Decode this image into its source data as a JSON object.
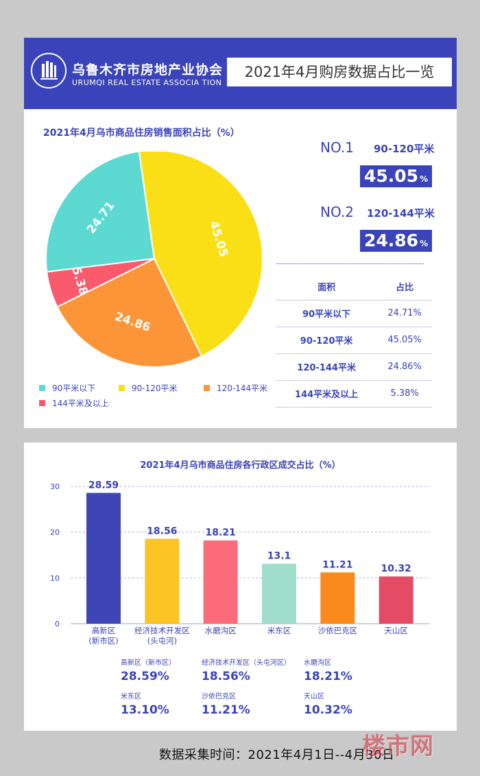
{
  "header": {
    "org_name": "乌鲁木齐市房地产业协会",
    "org_name_en": "URUMQI REAL ESTATE ASSOCIA TION",
    "title": "2021年4月购房数据占比一览"
  },
  "ranking": {
    "no1_label": "NO.1",
    "no1_category": "90-120平米",
    "no1_value": "45.05",
    "no2_label": "NO.2",
    "no2_category": "120-144平米",
    "no2_value": "24.86",
    "pct_sign": "%"
  },
  "area_table": {
    "headers": [
      "面积",
      "占比"
    ],
    "rows": [
      [
        "90平米以下",
        "24.71%"
      ],
      [
        "90-120平米",
        "45.05%"
      ],
      [
        "120-144平米",
        "24.86%"
      ],
      [
        "144平米及以上",
        "5.38%"
      ]
    ]
  },
  "district_stats": [
    {
      "label": "高新区（新市区）",
      "value": "28.59%"
    },
    {
      "label": "经济技术开发区（头屯河区）",
      "value": "18.56%"
    },
    {
      "label": "水磨沟区",
      "value": "18.21%"
    },
    {
      "label": "米东区",
      "value": "13.10%"
    },
    {
      "label": "沙依巴克区",
      "value": "11.21%"
    },
    {
      "label": "天山区",
      "value": "10.32%"
    }
  ],
  "footer": {
    "text": "数据采集时间：2021年4月1日--4月30日",
    "watermark": "楼市网"
  },
  "chart_data": [
    {
      "type": "pie",
      "title": "2021年4月乌市商品住房销售面积占比（%）",
      "categories": [
        "90平米以下",
        "90-120平米",
        "120-144平米",
        "144平米及以上"
      ],
      "values": [
        24.71,
        45.05,
        24.86,
        5.38
      ],
      "colors": [
        "#5cdad2",
        "#fadf17",
        "#fb9537",
        "#f95a6c"
      ],
      "legend": "bottom"
    },
    {
      "type": "bar",
      "title": "2021年4月乌市商品住房各行政区成交占比（%）",
      "categories": [
        [
          "高新区",
          "(新市区)"
        ],
        [
          "经济技术开发区",
          "(头屯河)"
        ],
        [
          "水磨沟区"
        ],
        [
          "米东区"
        ],
        [
          "沙依巴克区"
        ],
        [
          "天山区"
        ]
      ],
      "values": [
        28.59,
        18.56,
        18.21,
        13.1,
        11.21,
        10.32
      ],
      "value_labels": [
        "28.59",
        "18.56",
        "18.21",
        "13.1",
        "11.21",
        "10.32"
      ],
      "colors": [
        "#3e45b6",
        "#fcc324",
        "#fb6b7a",
        "#a0decb",
        "#fb8a1d",
        "#e44b65"
      ],
      "ylim": [
        0,
        30
      ],
      "yticks": [
        0,
        10,
        20,
        30
      ],
      "grid": true
    }
  ]
}
